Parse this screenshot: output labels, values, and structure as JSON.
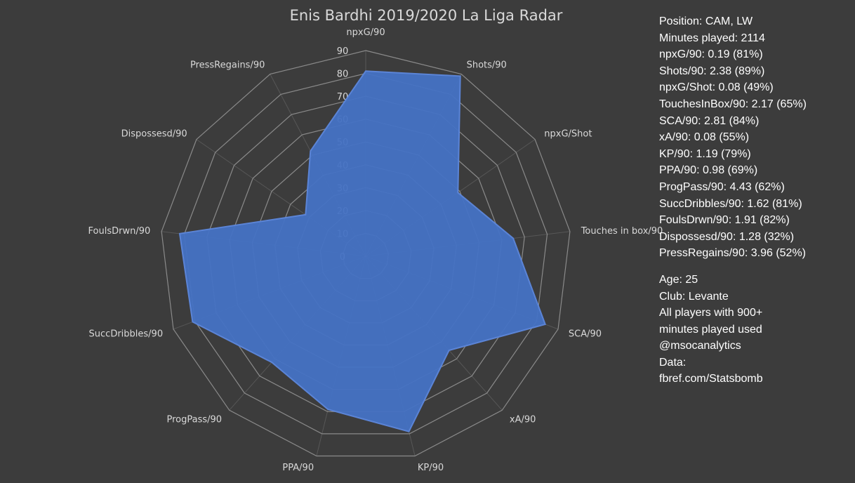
{
  "chart_data": {
    "type": "radar",
    "title": "Enis Bardhi 2019/2020 La Liga Radar",
    "axes": [
      "npxG/90",
      "Shots/90",
      "npxG/Shot",
      "Touches in box/90",
      "SCA/90",
      "xA/90",
      "KP/90",
      "PPA/90",
      "ProgPass/90",
      "SuccDribbles/90",
      "FoulsDrwn/90",
      "Dispossesd/90",
      "PressRegains/90"
    ],
    "series": [
      {
        "values": [
          81,
          89,
          49,
          65,
          84,
          55,
          79,
          69,
          62,
          81,
          82,
          32,
          52
        ]
      }
    ],
    "ticks": [
      0,
      10,
      20,
      30,
      40,
      50,
      60,
      70,
      80,
      90
    ],
    "rlim": [
      0,
      90
    ],
    "colors": {
      "fill": "#4472c4",
      "stroke": "#5b84d6",
      "grid": "#8a8a8a"
    }
  },
  "info": {
    "stats": [
      "Position: CAM, LW",
      "Minutes played: 2114",
      "npxG/90: 0.19 (81%)",
      "Shots/90: 2.38 (89%)",
      "npxG/Shot: 0.08 (49%)",
      "TouchesInBox/90: 2.17 (65%)",
      "SCA/90: 2.81 (84%)",
      "xA/90: 0.08 (55%)",
      "KP/90: 1.19 (79%)",
      "PPA/90: 0.98 (69%)",
      "ProgPass/90: 4.43 (62%)",
      "SuccDribbles/90: 1.62  (81%)",
      "FoulsDrwn/90: 1.91 (82%)",
      "Dispossesd/90: 1.28 (32%)",
      "PressRegains/90: 3.96 (52%)"
    ],
    "notes": [
      "Age: 25",
      "Club: Levante",
      "All players with 900+",
      "minutes played used",
      "@msocanalytics",
      "Data:",
      "fbref.com/Statsbomb"
    ]
  }
}
